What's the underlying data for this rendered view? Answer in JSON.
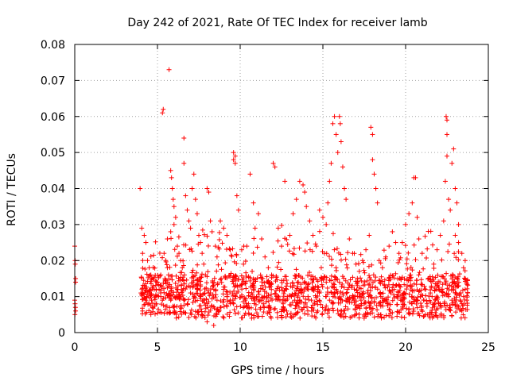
{
  "chart_data": {
    "type": "scatter",
    "title": "Day 242 of 2021, Rate Of TEC Index for receiver lamb",
    "xlabel": "GPS time / hours",
    "ylabel": "ROTI / TECUs",
    "xlim": [
      0,
      25
    ],
    "ylim": [
      0,
      0.08
    ],
    "xticks": [
      0,
      5,
      10,
      15,
      20,
      25
    ],
    "xtick_labels": [
      "0",
      "5",
      "10",
      "15",
      "20",
      "25"
    ],
    "yticks": [
      0,
      0.01,
      0.02,
      0.03,
      0.04,
      0.05,
      0.06,
      0.07,
      0.08
    ],
    "ytick_labels": [
      "0",
      "0.01",
      "0.02",
      "0.03",
      "0.04",
      "0.05",
      "0.06",
      "0.07",
      "0.08"
    ],
    "grid": true,
    "marker": "plus",
    "marker_color": "#ff0000",
    "series": [
      {
        "values_note_free": true,
        "points": [
          [
            0.0,
            0.024
          ],
          [
            0.02,
            0.02
          ],
          [
            0.03,
            0.019
          ],
          [
            0.05,
            0.015
          ],
          [
            0.05,
            0.014
          ],
          [
            0.0,
            0.009
          ],
          [
            0.02,
            0.008
          ],
          [
            0.04,
            0.007
          ],
          [
            0.05,
            0.006
          ],
          [
            0.01,
            0.005
          ],
          [
            3.95,
            0.04
          ],
          [
            4.05,
            0.029
          ],
          [
            4.2,
            0.027
          ],
          [
            4.3,
            0.025
          ],
          [
            4.1,
            0.022
          ],
          [
            4.4,
            0.02
          ],
          [
            4.5,
            0.018
          ],
          [
            4.6,
            0.016
          ],
          [
            4.2,
            0.013
          ],
          [
            4.0,
            0.011
          ],
          [
            4.3,
            0.009
          ],
          [
            4.5,
            0.008
          ],
          [
            4.7,
            0.007
          ],
          [
            4.1,
            0.006
          ],
          [
            4.8,
            0.012
          ],
          [
            4.9,
            0.01
          ],
          [
            4.6,
            0.005
          ],
          [
            5.0,
            0.014
          ],
          [
            5.1,
            0.012
          ],
          [
            5.2,
            0.01
          ],
          [
            5.3,
            0.009
          ],
          [
            5.4,
            0.022
          ],
          [
            5.5,
            0.02
          ],
          [
            5.6,
            0.018
          ],
          [
            5.2,
            0.016
          ],
          [
            5.35,
            0.062
          ],
          [
            5.3,
            0.061
          ],
          [
            5.7,
            0.073
          ],
          [
            5.8,
            0.045
          ],
          [
            5.85,
            0.043
          ],
          [
            5.9,
            0.04
          ],
          [
            5.95,
            0.037
          ],
          [
            6.0,
            0.035
          ],
          [
            6.1,
            0.032
          ],
          [
            6.0,
            0.03
          ],
          [
            5.8,
            0.028
          ],
          [
            5.6,
            0.026
          ],
          [
            6.2,
            0.024
          ],
          [
            6.3,
            0.022
          ],
          [
            6.4,
            0.02
          ],
          [
            6.5,
            0.018
          ],
          [
            6.6,
            0.054
          ],
          [
            6.6,
            0.047
          ],
          [
            6.7,
            0.038
          ],
          [
            6.8,
            0.034
          ],
          [
            6.9,
            0.031
          ],
          [
            7.0,
            0.029
          ],
          [
            6.2,
            0.012
          ],
          [
            6.4,
            0.01
          ],
          [
            6.6,
            0.009
          ],
          [
            6.8,
            0.008
          ],
          [
            7.0,
            0.011
          ],
          [
            7.1,
            0.04
          ],
          [
            7.2,
            0.044
          ],
          [
            7.3,
            0.037
          ],
          [
            7.4,
            0.033
          ],
          [
            7.5,
            0.027
          ],
          [
            7.6,
            0.025
          ],
          [
            7.7,
            0.022
          ],
          [
            7.8,
            0.019
          ],
          [
            7.9,
            0.016
          ],
          [
            8.0,
            0.04
          ],
          [
            8.1,
            0.039
          ],
          [
            8.2,
            0.031
          ],
          [
            8.3,
            0.028
          ],
          [
            8.5,
            0.024
          ],
          [
            8.6,
            0.021
          ],
          [
            7.4,
            0.012
          ],
          [
            7.6,
            0.01
          ],
          [
            7.8,
            0.009
          ],
          [
            8.0,
            0.008
          ],
          [
            8.2,
            0.011
          ],
          [
            8.4,
            0.013
          ],
          [
            8.6,
            0.009
          ],
          [
            8.8,
            0.007
          ],
          [
            8.0,
            0.003
          ],
          [
            8.4,
            0.002
          ],
          [
            8.8,
            0.031
          ],
          [
            9.0,
            0.029
          ],
          [
            9.2,
            0.027
          ],
          [
            9.4,
            0.023
          ],
          [
            9.6,
            0.05
          ],
          [
            9.7,
            0.049
          ],
          [
            9.6,
            0.048
          ],
          [
            9.7,
            0.047
          ],
          [
            9.8,
            0.038
          ],
          [
            9.9,
            0.034
          ],
          [
            9.0,
            0.012
          ],
          [
            9.2,
            0.01
          ],
          [
            9.4,
            0.009
          ],
          [
            9.6,
            0.008
          ],
          [
            9.8,
            0.011
          ],
          [
            10.0,
            0.013
          ],
          [
            10.2,
            0.019
          ],
          [
            10.4,
            0.024
          ],
          [
            10.6,
            0.044
          ],
          [
            10.8,
            0.036
          ],
          [
            10.1,
            0.01
          ],
          [
            10.3,
            0.009
          ],
          [
            10.5,
            0.008
          ],
          [
            10.7,
            0.011
          ],
          [
            10.9,
            0.029
          ],
          [
            11.1,
            0.033
          ],
          [
            11.3,
            0.026
          ],
          [
            11.5,
            0.021
          ],
          [
            11.7,
            0.018
          ],
          [
            11.9,
            0.016
          ],
          [
            11.0,
            0.01
          ],
          [
            11.2,
            0.009
          ],
          [
            11.4,
            0.008
          ],
          [
            11.6,
            0.011
          ],
          [
            11.8,
            0.007
          ],
          [
            12.0,
            0.047
          ],
          [
            12.1,
            0.046
          ],
          [
            12.3,
            0.029
          ],
          [
            12.5,
            0.024
          ],
          [
            12.7,
            0.042
          ],
          [
            12.2,
            0.01
          ],
          [
            12.4,
            0.009
          ],
          [
            12.6,
            0.008
          ],
          [
            12.8,
            0.012
          ],
          [
            13.0,
            0.027
          ],
          [
            13.2,
            0.033
          ],
          [
            13.4,
            0.037
          ],
          [
            13.6,
            0.042
          ],
          [
            13.8,
            0.041
          ],
          [
            13.9,
            0.039
          ],
          [
            13.1,
            0.01
          ],
          [
            13.3,
            0.009
          ],
          [
            13.5,
            0.008
          ],
          [
            13.7,
            0.011
          ],
          [
            14.0,
            0.035
          ],
          [
            14.2,
            0.031
          ],
          [
            14.4,
            0.027
          ],
          [
            14.6,
            0.024
          ],
          [
            14.8,
            0.034
          ],
          [
            15.0,
            0.032
          ],
          [
            14.1,
            0.01
          ],
          [
            14.3,
            0.009
          ],
          [
            14.5,
            0.008
          ],
          [
            14.7,
            0.012
          ],
          [
            14.9,
            0.018
          ],
          [
            15.1,
            0.022
          ],
          [
            15.2,
            0.03
          ],
          [
            15.3,
            0.036
          ],
          [
            15.4,
            0.042
          ],
          [
            15.5,
            0.047
          ],
          [
            15.6,
            0.058
          ],
          [
            15.7,
            0.06
          ],
          [
            15.8,
            0.055
          ],
          [
            15.9,
            0.05
          ],
          [
            16.0,
            0.06
          ],
          [
            16.05,
            0.058
          ],
          [
            16.1,
            0.053
          ],
          [
            16.2,
            0.046
          ],
          [
            16.3,
            0.04
          ],
          [
            16.4,
            0.037
          ],
          [
            15.2,
            0.01
          ],
          [
            15.4,
            0.009
          ],
          [
            15.6,
            0.008
          ],
          [
            15.8,
            0.012
          ],
          [
            16.0,
            0.014
          ],
          [
            16.2,
            0.011
          ],
          [
            16.4,
            0.009
          ],
          [
            16.6,
            0.026
          ],
          [
            16.8,
            0.022
          ],
          [
            17.0,
            0.019
          ],
          [
            17.2,
            0.017
          ],
          [
            17.4,
            0.02
          ],
          [
            17.6,
            0.023
          ],
          [
            17.8,
            0.027
          ],
          [
            17.9,
            0.057
          ],
          [
            18.0,
            0.055
          ],
          [
            18.0,
            0.048
          ],
          [
            18.1,
            0.044
          ],
          [
            18.2,
            0.04
          ],
          [
            18.3,
            0.036
          ],
          [
            17.1,
            0.01
          ],
          [
            17.3,
            0.009
          ],
          [
            17.5,
            0.008
          ],
          [
            17.7,
            0.011
          ],
          [
            18.4,
            0.02
          ],
          [
            18.6,
            0.018
          ],
          [
            18.8,
            0.021
          ],
          [
            19.0,
            0.024
          ],
          [
            19.2,
            0.028
          ],
          [
            19.4,
            0.025
          ],
          [
            18.5,
            0.01
          ],
          [
            18.7,
            0.009
          ],
          [
            18.9,
            0.008
          ],
          [
            19.1,
            0.011
          ],
          [
            19.3,
            0.012
          ],
          [
            19.5,
            0.01
          ],
          [
            19.7,
            0.009
          ],
          [
            19.9,
            0.011
          ],
          [
            20.1,
            0.013
          ],
          [
            20.3,
            0.016
          ],
          [
            19.6,
            0.022
          ],
          [
            19.8,
            0.025
          ],
          [
            20.0,
            0.03
          ],
          [
            20.2,
            0.033
          ],
          [
            20.4,
            0.036
          ],
          [
            20.5,
            0.043
          ],
          [
            20.6,
            0.043
          ],
          [
            20.7,
            0.032
          ],
          [
            20.8,
            0.026
          ],
          [
            21.0,
            0.022
          ],
          [
            20.9,
            0.01
          ],
          [
            21.1,
            0.009
          ],
          [
            21.3,
            0.008
          ],
          [
            21.5,
            0.011
          ],
          [
            21.7,
            0.019
          ],
          [
            21.9,
            0.023
          ],
          [
            22.1,
            0.027
          ],
          [
            22.3,
            0.031
          ],
          [
            22.4,
            0.042
          ],
          [
            22.5,
            0.049
          ],
          [
            22.45,
            0.06
          ],
          [
            22.5,
            0.059
          ],
          [
            22.5,
            0.055
          ],
          [
            22.6,
            0.037
          ],
          [
            22.7,
            0.034
          ],
          [
            22.8,
            0.047
          ],
          [
            22.9,
            0.051
          ],
          [
            23.0,
            0.04
          ],
          [
            23.1,
            0.036
          ],
          [
            23.2,
            0.03
          ],
          [
            21.6,
            0.01
          ],
          [
            21.8,
            0.009
          ],
          [
            22.0,
            0.008
          ],
          [
            22.2,
            0.012
          ],
          [
            22.6,
            0.01
          ],
          [
            22.8,
            0.009
          ],
          [
            23.0,
            0.011
          ],
          [
            23.2,
            0.013
          ],
          [
            23.4,
            0.022
          ],
          [
            23.6,
            0.02
          ],
          [
            23.3,
            0.009
          ],
          [
            23.4,
            0.008
          ],
          [
            23.5,
            0.01
          ],
          [
            23.6,
            0.012
          ],
          [
            23.7,
            0.009
          ],
          [
            23.5,
            0.018
          ],
          [
            23.6,
            0.015
          ],
          [
            23.2,
            0.025
          ],
          [
            23.0,
            0.027
          ],
          [
            23.4,
            0.006
          ]
        ]
      }
    ]
  }
}
